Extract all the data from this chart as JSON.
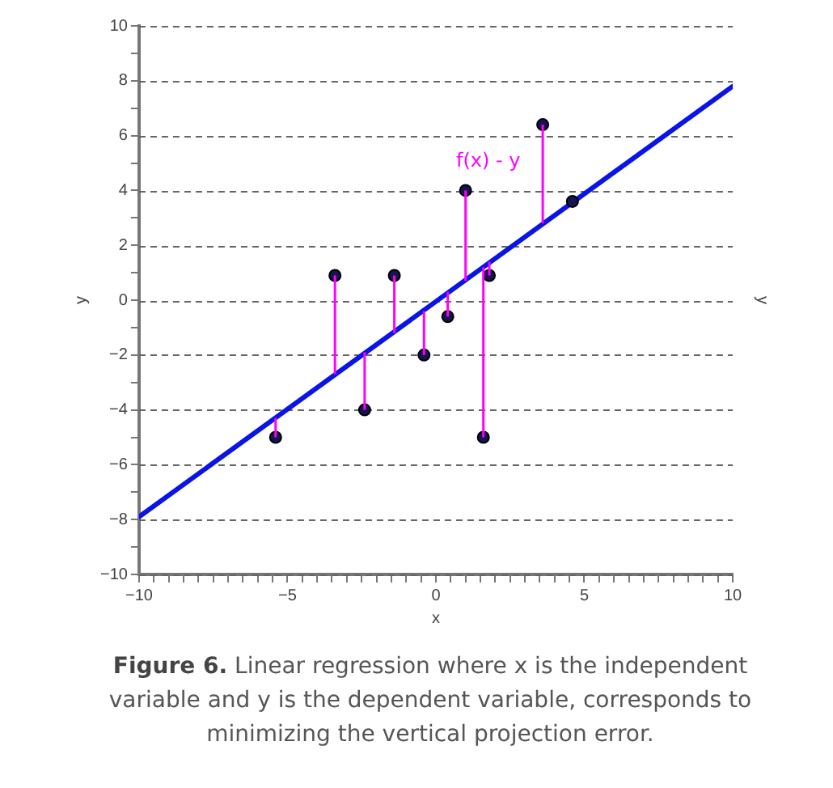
{
  "chart_data": {
    "type": "scatter",
    "xlabel": "x",
    "ylabel": "y",
    "y2label": "y",
    "xlim": [
      -10,
      10
    ],
    "xticks": [
      -10,
      {
        "value": -9.5,
        "label": null
      },
      {
        "value": -9,
        "label": null
      },
      {
        "value": -8.5,
        "label": null
      },
      {
        "value": -8,
        "label": null
      },
      {
        "value": -7.5,
        "label": null
      },
      {
        "value": -7,
        "label": null
      },
      {
        "value": -6.5,
        "label": null
      },
      {
        "value": -6,
        "label": null
      },
      {
        "value": -5.5,
        "label": null
      },
      -5,
      {
        "value": -4.5,
        "label": null
      },
      {
        "value": -4,
        "label": null
      },
      {
        "value": -3.5,
        "label": null
      },
      {
        "value": -3,
        "label": null
      },
      {
        "value": -2.5,
        "label": null
      },
      {
        "value": -2,
        "label": null
      },
      {
        "value": -1.5,
        "label": null
      },
      {
        "value": -1,
        "label": null
      },
      {
        "value": -0.5,
        "label": null
      },
      0,
      {
        "value": 0.5,
        "label": null
      },
      {
        "value": 1,
        "label": null
      },
      {
        "value": 1.5,
        "label": null
      },
      {
        "value": 2,
        "label": null
      },
      {
        "value": 2.5,
        "label": null
      },
      {
        "value": 3,
        "label": null
      },
      {
        "value": 3.5,
        "label": null
      },
      {
        "value": 4,
        "label": null
      },
      {
        "value": 4.5,
        "label": null
      },
      5,
      {
        "value": 5.5,
        "label": null
      },
      {
        "value": 6,
        "label": null
      },
      {
        "value": 6.5,
        "label": null
      },
      {
        "value": 7,
        "label": null
      },
      {
        "value": 7.5,
        "label": null
      },
      {
        "value": 8,
        "label": null
      },
      {
        "value": 8.5,
        "label": null
      },
      {
        "value": 9,
        "label": null
      },
      {
        "value": 9.5,
        "label": null
      },
      10
    ],
    "ylim": [
      -10,
      10
    ],
    "yticks": [
      -10,
      {
        "value": -9,
        "label": null
      },
      -8,
      {
        "value": -7,
        "label": null
      },
      -6,
      {
        "value": -5,
        "label": null
      },
      -4,
      {
        "value": -3,
        "label": null
      },
      -2,
      {
        "value": -1,
        "label": null
      },
      0,
      {
        "value": 1,
        "label": null
      },
      2,
      {
        "value": 3,
        "label": null
      },
      4,
      {
        "value": 5,
        "label": null
      },
      6,
      {
        "value": 7,
        "label": null
      },
      8,
      {
        "value": 9,
        "label": null
      },
      10
    ],
    "grid": "y",
    "series": [
      {
        "type": "line",
        "color": "#0a14e6",
        "x": [
          -10,
          10
        ],
        "values": [
          -7.9,
          7.8
        ]
      },
      {
        "color": "#141450",
        "x": [
          -5.4,
          -3.4,
          -2.4,
          -1.4,
          -0.4,
          0.4,
          1.0,
          1.6,
          1.8,
          3.6,
          4.6
        ],
        "values": [
          -5,
          0.9,
          -4,
          0.9,
          -2,
          -0.6,
          4,
          -5,
          0.9,
          6.4,
          3.6
        ],
        "errors": [
          [
            -5,
            -4.3
          ],
          [
            -2.7,
            0.9
          ],
          [
            -4,
            -1.9
          ],
          [
            -1.2,
            0.9
          ],
          [
            -2,
            -0.4
          ],
          [
            -0.6,
            0.3
          ],
          [
            0.7,
            4
          ],
          [
            -5,
            1.2
          ],
          [
            0.9,
            1.4
          ],
          [
            2.8,
            6.4
          ],
          null
        ]
      }
    ],
    "annotations": [
      "f(x) - y",
      "Figure 6. Linear regression where x is the independent variable and y is the dependent variable, corresponds to minimizing the vertical projection error."
    ]
  }
}
